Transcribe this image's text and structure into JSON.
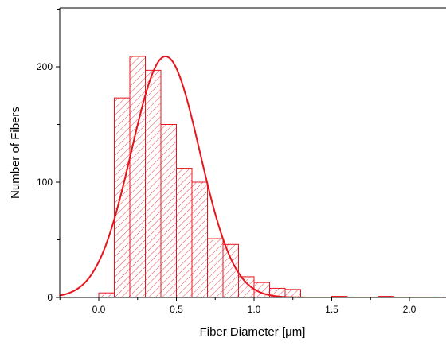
{
  "chart_data": {
    "type": "bar",
    "xlabel": "Fiber Diameter [μm]",
    "ylabel": "Number of Fibers",
    "xlim": [
      -0.25,
      2.2
    ],
    "ylim": [
      0,
      250
    ],
    "x_ticks": [
      0.0,
      0.5,
      1.0,
      1.5,
      2.0
    ],
    "x_tick_labels": [
      "0.0",
      "0.5",
      "1.0",
      "1.5",
      "2.0"
    ],
    "y_ticks": [
      0,
      100,
      200
    ],
    "y_tick_labels": [
      "0",
      "100",
      "200"
    ],
    "bin_width": 0.1,
    "bins": [
      {
        "x0": 0.0,
        "x1": 0.1,
        "count": 4
      },
      {
        "x0": 0.1,
        "x1": 0.2,
        "count": 173
      },
      {
        "x0": 0.2,
        "x1": 0.3,
        "count": 209
      },
      {
        "x0": 0.3,
        "x1": 0.4,
        "count": 197
      },
      {
        "x0": 0.4,
        "x1": 0.5,
        "count": 150
      },
      {
        "x0": 0.5,
        "x1": 0.6,
        "count": 112
      },
      {
        "x0": 0.6,
        "x1": 0.7,
        "count": 100
      },
      {
        "x0": 0.7,
        "x1": 0.8,
        "count": 51
      },
      {
        "x0": 0.8,
        "x1": 0.9,
        "count": 46
      },
      {
        "x0": 0.9,
        "x1": 1.0,
        "count": 18
      },
      {
        "x0": 1.0,
        "x1": 1.1,
        "count": 13
      },
      {
        "x0": 1.1,
        "x1": 1.2,
        "count": 8
      },
      {
        "x0": 1.2,
        "x1": 1.3,
        "count": 7
      },
      {
        "x0": 1.5,
        "x1": 1.6,
        "count": 1
      },
      {
        "x0": 1.8,
        "x1": 1.9,
        "count": 1
      }
    ],
    "fit": {
      "type": "gaussian",
      "amplitude": 209,
      "mean": 0.43,
      "sigma": 0.22
    },
    "colors": {
      "bars": "#e8141c",
      "fit": "#e8141c",
      "axes": "#000000"
    },
    "grid": false,
    "legend": "none"
  }
}
